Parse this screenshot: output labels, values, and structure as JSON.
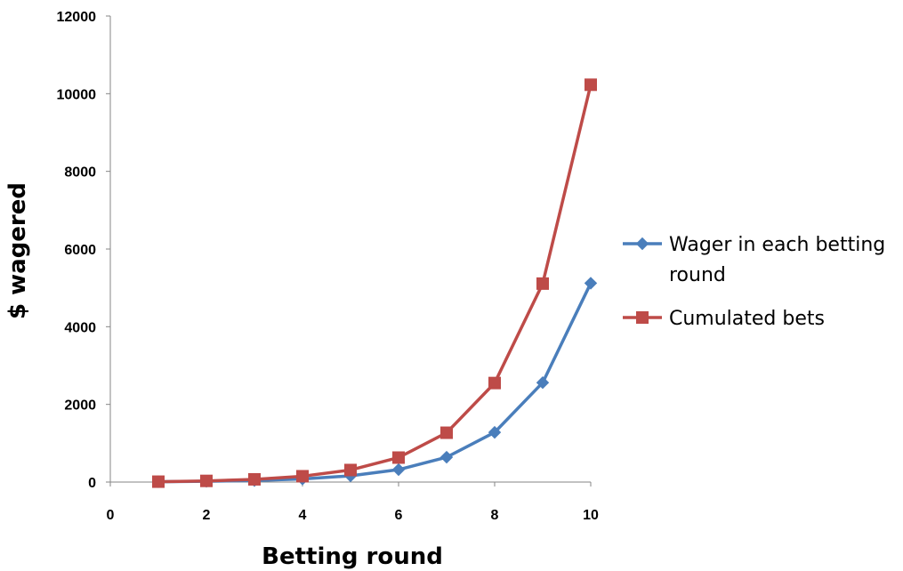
{
  "chart_data": {
    "type": "line",
    "title": "",
    "xlabel": "Betting round",
    "ylabel": "$ wagered",
    "xlim": [
      0,
      10
    ],
    "ylim": [
      0,
      12000
    ],
    "x_ticks": [
      "0",
      "2",
      "4",
      "6",
      "8",
      "10"
    ],
    "y_ticks": [
      "0",
      "2000",
      "4000",
      "6000",
      "8000",
      "10000",
      "12000"
    ],
    "grid": false,
    "legend_position": "right",
    "series": [
      {
        "name": "Wager in each betting round",
        "color": "#4A7EBB",
        "marker": "diamond",
        "x": [
          1,
          2,
          3,
          4,
          5,
          6,
          7,
          8,
          9,
          10
        ],
        "y": [
          10,
          20,
          40,
          80,
          160,
          320,
          640,
          1280,
          2560,
          5120
        ]
      },
      {
        "name": "Cumulated bets",
        "color": "#BE4B48",
        "marker": "square",
        "x": [
          1,
          2,
          3,
          4,
          5,
          6,
          7,
          8,
          9,
          10
        ],
        "y": [
          10,
          30,
          70,
          150,
          310,
          630,
          1270,
          2550,
          5110,
          10230
        ]
      }
    ]
  }
}
